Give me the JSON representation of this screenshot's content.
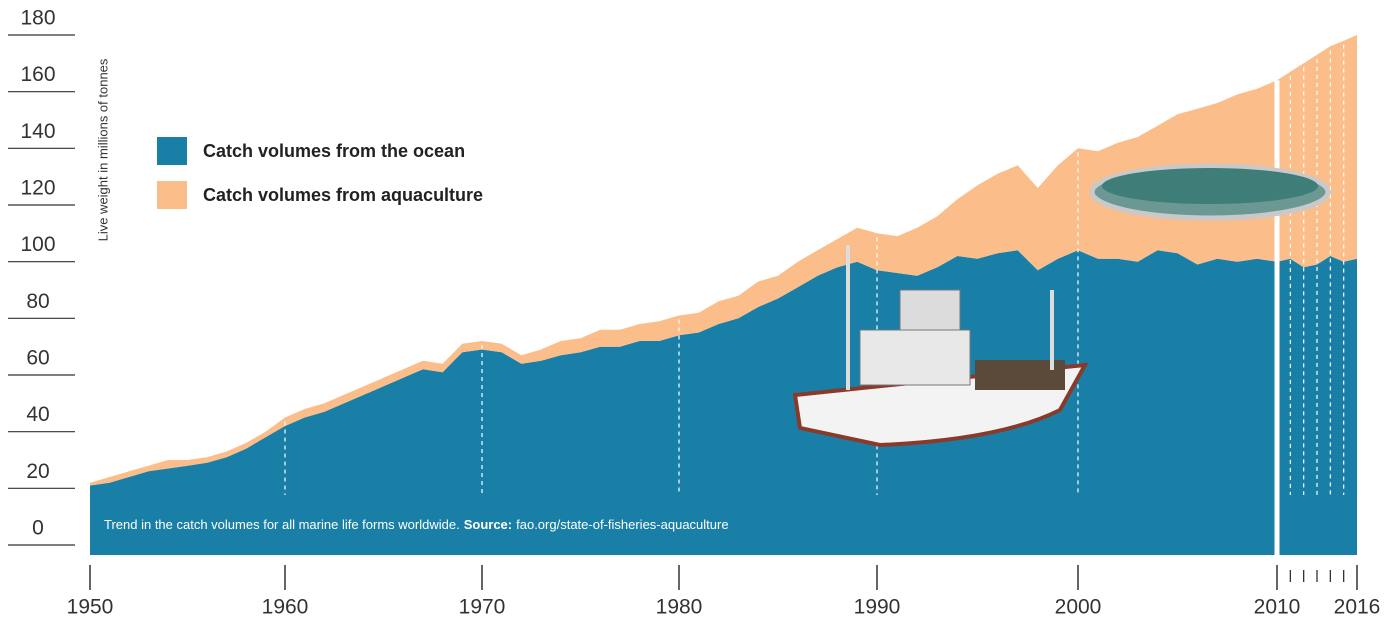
{
  "chart_data": {
    "type": "stacked-area",
    "y_label": "Live weight in millions of tonnes",
    "annotation": "Trend in the catch volumes for all marine life forms worldwide.",
    "source_label": "Source:",
    "source": "fao.org/state-of-fisheries-aquaculture",
    "x": [
      1950,
      1951,
      1952,
      1953,
      1954,
      1955,
      1956,
      1957,
      1958,
      1959,
      1960,
      1961,
      1962,
      1963,
      1964,
      1965,
      1966,
      1967,
      1968,
      1969,
      1970,
      1971,
      1972,
      1973,
      1974,
      1975,
      1976,
      1977,
      1978,
      1979,
      1980,
      1981,
      1982,
      1983,
      1984,
      1985,
      1986,
      1987,
      1988,
      1989,
      1990,
      1991,
      1992,
      1993,
      1994,
      1995,
      1996,
      1997,
      1998,
      1999,
      2000,
      2001,
      2002,
      2003,
      2004,
      2005,
      2006,
      2007,
      2008,
      2009,
      2010,
      2011,
      2012,
      2013,
      2014,
      2015,
      2016
    ],
    "series": [
      {
        "name": "Catch volumes from the ocean",
        "color": "#1a7fa6",
        "values": [
          21,
          22,
          24,
          26,
          27,
          28,
          29,
          31,
          34,
          38,
          42,
          45,
          47,
          50,
          53,
          56,
          59,
          62,
          61,
          68,
          69,
          68,
          64,
          65,
          67,
          68,
          70,
          70,
          72,
          72,
          74,
          75,
          78,
          80,
          84,
          87,
          91,
          95,
          98,
          100,
          97,
          96,
          95,
          98,
          102,
          101,
          103,
          104,
          97,
          101,
          104,
          101,
          101,
          100,
          104,
          103,
          99,
          101,
          100,
          101,
          100,
          101,
          98,
          99,
          102,
          100,
          101
        ]
      },
      {
        "name": "Catch volumes from aquaculture",
        "color": "#fbbd8a",
        "values": [
          1,
          2,
          2,
          2,
          3,
          2,
          2,
          2,
          2,
          2,
          3,
          3,
          3,
          3,
          3,
          3,
          3,
          3,
          3,
          3,
          3,
          3,
          3,
          4,
          5,
          5,
          6,
          6,
          6,
          7,
          7,
          7,
          8,
          8,
          9,
          8,
          9,
          9,
          10,
          12,
          13,
          13,
          17,
          18,
          20,
          26,
          28,
          30,
          29,
          33,
          36,
          38,
          41,
          44,
          44,
          49,
          55,
          55,
          59,
          60,
          64,
          66,
          72,
          74,
          74,
          78,
          79
        ]
      }
    ],
    "xlim": [
      1950,
      2016
    ],
    "xticks": [
      1950,
      1960,
      1970,
      1980,
      1990,
      2000,
      2010,
      2016
    ],
    "xminorticks": [
      2011,
      2012,
      2013,
      2014,
      2015
    ],
    "highlight_tick": 2010,
    "ylim": [
      0,
      180
    ],
    "yticks": [
      0,
      20,
      40,
      60,
      80,
      100,
      120,
      140,
      160,
      180
    ],
    "grid": true
  }
}
